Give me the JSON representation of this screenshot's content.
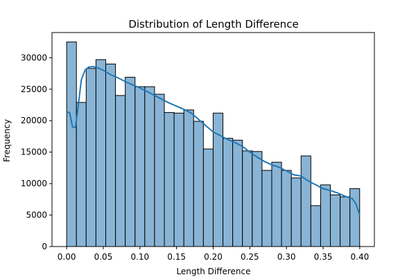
{
  "chart_data": {
    "type": "bar",
    "title": "Distribution of Length Difference",
    "xlabel": "Length Difference",
    "ylabel": "Frequency",
    "xlim": [
      -0.02,
      0.42
    ],
    "ylim": [
      0,
      34000
    ],
    "xticks": [
      0.0,
      0.05,
      0.1,
      0.15,
      0.2,
      0.25,
      0.3,
      0.35,
      0.4
    ],
    "xtick_labels": [
      "0.00",
      "0.05",
      "0.10",
      "0.15",
      "0.20",
      "0.25",
      "0.30",
      "0.35",
      "0.40"
    ],
    "yticks": [
      0,
      5000,
      10000,
      15000,
      20000,
      25000,
      30000
    ],
    "ytick_labels": [
      "0",
      "5000",
      "10000",
      "15000",
      "20000",
      "25000",
      "30000"
    ],
    "bins": {
      "start": 0.0,
      "width": 0.01333,
      "values": [
        32500,
        22900,
        28300,
        29700,
        29000,
        24000,
        26900,
        25400,
        25400,
        24200,
        21300,
        21200,
        21700,
        19900,
        15500,
        21200,
        17200,
        16900,
        15200,
        15100,
        12100,
        13400,
        12100,
        10900,
        14400,
        6500,
        9800,
        8200,
        7900,
        9200
      ]
    },
    "kde": {
      "x": [
        0.0,
        0.004,
        0.008,
        0.012,
        0.016,
        0.02,
        0.025,
        0.03,
        0.035,
        0.04,
        0.05,
        0.06,
        0.07,
        0.08,
        0.09,
        0.1,
        0.11,
        0.12,
        0.13,
        0.14,
        0.15,
        0.16,
        0.17,
        0.18,
        0.19,
        0.2,
        0.21,
        0.22,
        0.23,
        0.24,
        0.25,
        0.26,
        0.27,
        0.28,
        0.29,
        0.3,
        0.31,
        0.32,
        0.33,
        0.34,
        0.35,
        0.36,
        0.37,
        0.38,
        0.39,
        0.395,
        0.4
      ],
      "y": [
        21300,
        21300,
        19000,
        18900,
        22500,
        26500,
        28000,
        28500,
        28600,
        28500,
        28000,
        27300,
        26800,
        26200,
        25700,
        25200,
        24600,
        24000,
        23400,
        22800,
        22300,
        21800,
        21200,
        20200,
        19200,
        18200,
        17600,
        17000,
        16500,
        15900,
        15000,
        14200,
        13500,
        13000,
        12600,
        12000,
        11400,
        11200,
        10400,
        9800,
        9200,
        8900,
        8500,
        8000,
        7600,
        6700,
        5000
      ]
    },
    "colors": {
      "bar_fill": "#89b4d5",
      "bar_edge": "#000000",
      "kde_line": "#1f77b4"
    },
    "grid": false,
    "legend": "none"
  }
}
